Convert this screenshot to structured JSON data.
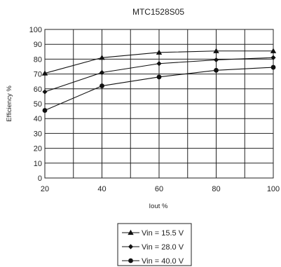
{
  "chart_data": {
    "type": "line",
    "title": "MTC1528S05",
    "xlabel": "Iout %",
    "ylabel": "Efficiency %",
    "xlim": [
      20,
      100
    ],
    "ylim": [
      0,
      100
    ],
    "x_ticks": [
      20,
      40,
      60,
      80,
      100
    ],
    "y_ticks": [
      0,
      10,
      20,
      30,
      40,
      50,
      60,
      70,
      80,
      90,
      100
    ],
    "grid": true,
    "legend_position": "bottom-center",
    "series": [
      {
        "name": "Vin = 15.5 V",
        "marker": "triangle",
        "x": [
          20,
          40,
          60,
          80,
          100
        ],
        "y": [
          70.5,
          81,
          84.5,
          85.5,
          85.5
        ]
      },
      {
        "name": "Vin = 28.0 V",
        "marker": "diamond",
        "x": [
          20,
          40,
          60,
          80,
          100
        ],
        "y": [
          58,
          71,
          77,
          79.5,
          81
        ]
      },
      {
        "name": "Vin = 40.0 V",
        "marker": "circle",
        "x": [
          20,
          40,
          60,
          80,
          100
        ],
        "y": [
          45.5,
          62,
          68,
          72.5,
          74.5
        ]
      }
    ],
    "colors": {
      "line": "#111111",
      "grid": "#222222",
      "background": "#ffffff"
    }
  }
}
